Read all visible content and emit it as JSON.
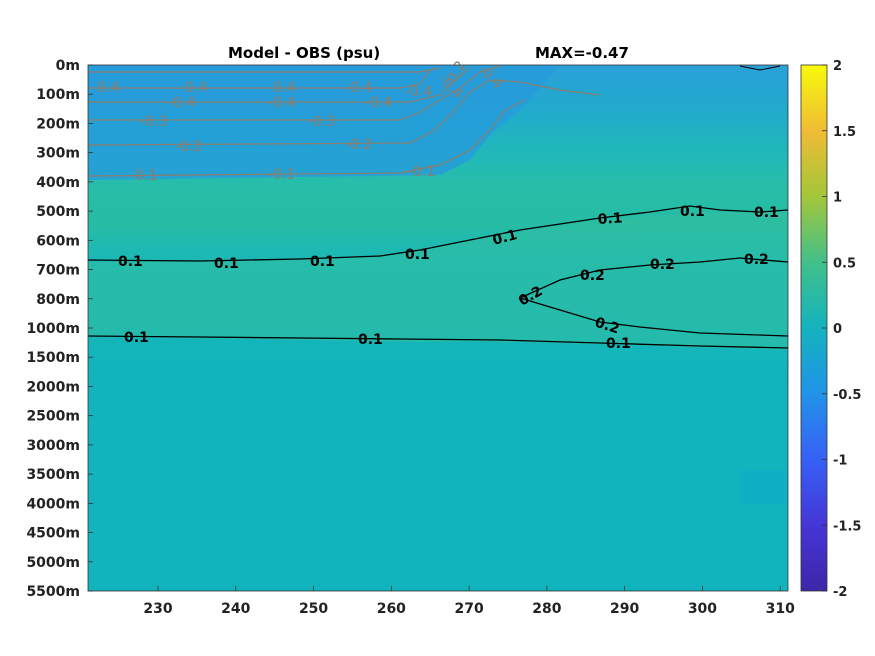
{
  "chart_data": {
    "type": "heatmap",
    "title_left": "Model - OBS (psu)",
    "title_right": "MAX=-0.47",
    "x_ticks": [
      230,
      240,
      250,
      260,
      270,
      280,
      290,
      300,
      310
    ],
    "x_range": [
      221,
      311
    ],
    "y_tick_labels": [
      "0m",
      "100m",
      "200m",
      "300m",
      "400m",
      "500m",
      "600m",
      "700m",
      "800m",
      "1000m",
      "1500m",
      "2000m",
      "2500m",
      "3000m",
      "3500m",
      "4000m",
      "4500m",
      "5000m",
      "5500m"
    ],
    "colorbar": {
      "range": [
        -2,
        2
      ],
      "ticks": [
        {
          "value": 2,
          "label": "2"
        },
        {
          "value": 1.5,
          "label": "1.5"
        },
        {
          "value": 1,
          "label": "1"
        },
        {
          "value": 0.5,
          "label": "0.5"
        },
        {
          "value": 0,
          "label": "0"
        },
        {
          "value": -0.5,
          "label": "-0.5"
        },
        {
          "value": -1,
          "label": "-1"
        },
        {
          "value": -1.5,
          "label": "-1.5"
        },
        {
          "value": -2,
          "label": "-2"
        }
      ],
      "colors": {
        "bottom": "#3e26a8",
        "low": "#2f7ff0",
        "mid": "#14b3bf",
        "high": "#8fcb4a",
        "top": "#f8fa0d"
      }
    },
    "contours": {
      "negative_color": "#8a7d6c",
      "positive_color": "#000000",
      "labels_negative": [
        "-0.4",
        "-0.4",
        "-0.4",
        "-0.4",
        "-0.4",
        "-0.4",
        "-0.4",
        "-0.4",
        "-0.3",
        "-0.3",
        "-0.2",
        "-0.2",
        "-0.1",
        "-0.1",
        "-0.1",
        "-0.4",
        "-0.2",
        "-0.4"
      ],
      "labels_positive": [
        "0.1",
        "0.1",
        "0.1",
        "0.1",
        "0.1",
        "0.1",
        "0.1",
        "0.1",
        "0.2",
        "0.2",
        "0.2",
        "0.2",
        "0.2",
        "0.1",
        "0.1",
        "0.1"
      ]
    }
  }
}
